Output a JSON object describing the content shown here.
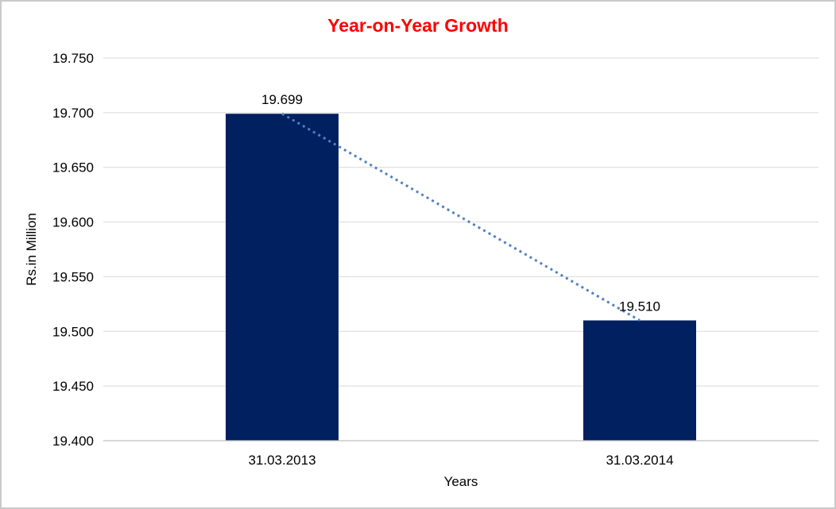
{
  "chart_data": {
    "type": "bar",
    "title": "Year-on-Year Growth",
    "xlabel": "Years",
    "ylabel": "Rs.in Million",
    "categories": [
      "31.03.2013",
      "31.03.2014"
    ],
    "series": [
      {
        "name": "Rs.in Million",
        "values": [
          19.699,
          19.51
        ]
      }
    ],
    "data_labels": [
      "19.699",
      "19.510"
    ],
    "ylim": [
      19.4,
      19.75
    ],
    "ytick_step": 0.05,
    "ytick_labels": [
      "19.400",
      "19.450",
      "19.500",
      "19.550",
      "19.600",
      "19.650",
      "19.700",
      "19.750"
    ],
    "grid": "horizontal",
    "legend": "none",
    "trendline": {
      "style": "dotted",
      "connects": "bar-tops"
    },
    "colors": {
      "bar": "#002060",
      "title": "#ff0000",
      "trendline": "#4f81bd",
      "gridline": "#d9d9d9",
      "axis_line": "#bfbfbf",
      "text": "#000000",
      "frame_border": "#c9c9c9",
      "background": "#ffffff"
    }
  }
}
